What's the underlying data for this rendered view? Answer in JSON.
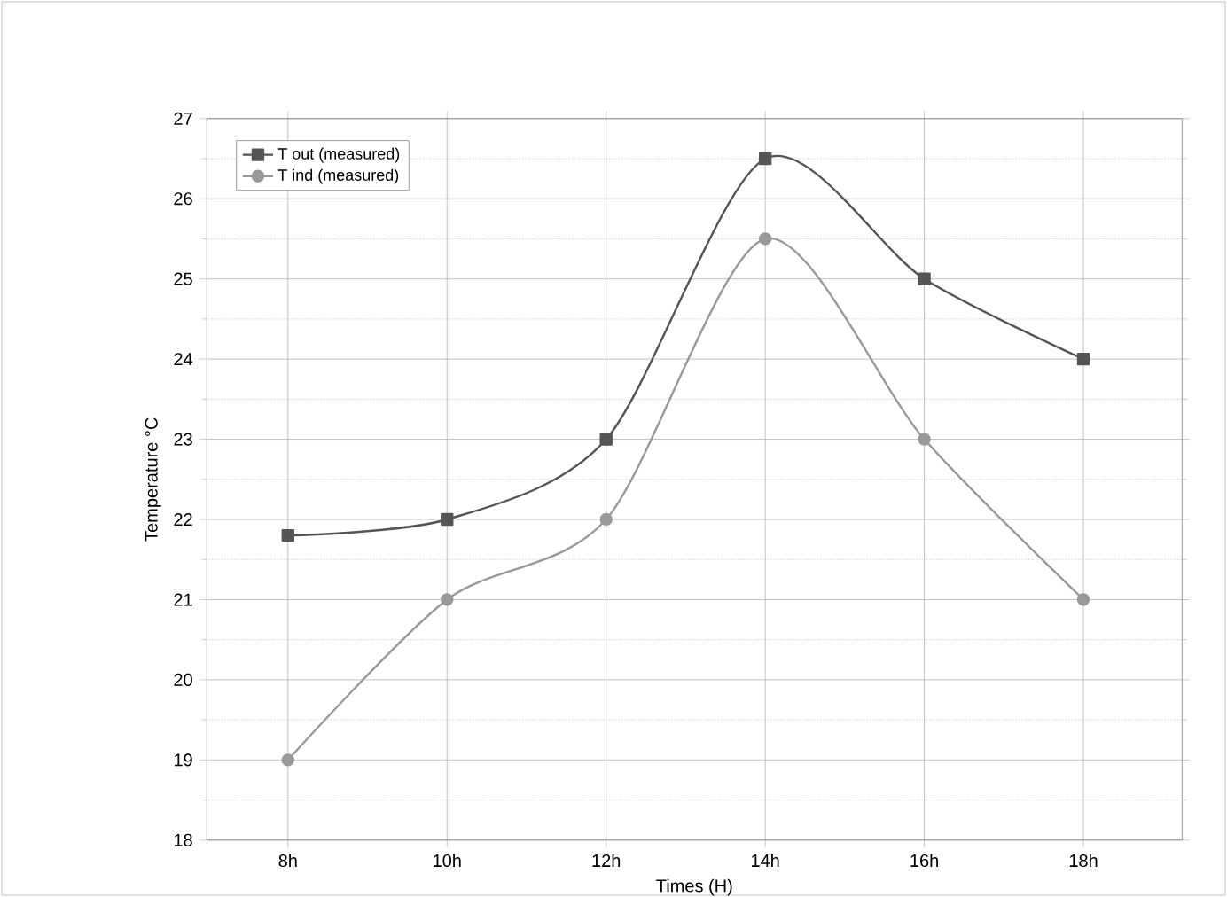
{
  "chart_data": {
    "type": "line",
    "xlabel": "Times (H)",
    "ylabel": "Temperature °C",
    "categories": [
      "8h",
      "10h",
      "12h",
      "14h",
      "16h",
      "18h"
    ],
    "series": [
      {
        "name": "T out (measured)",
        "color": "#555555",
        "marker": "square",
        "values": [
          21.8,
          22,
          23,
          26.5,
          25,
          24
        ]
      },
      {
        "name": "T ind (measured)",
        "color": "#999999",
        "marker": "circle",
        "values": [
          19,
          21,
          22,
          25.5,
          23,
          21
        ]
      }
    ],
    "ylim": [
      18,
      27
    ],
    "yticks": [
      18,
      19,
      20,
      21,
      22,
      23,
      24,
      25,
      26,
      27
    ],
    "grid": true,
    "legend": "top left"
  }
}
